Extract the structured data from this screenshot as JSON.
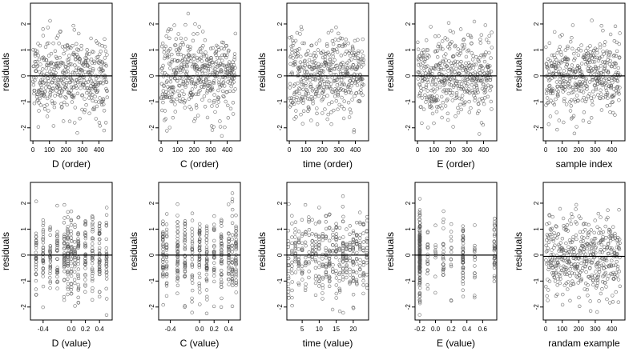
{
  "chart_data": [
    {
      "type": "scatter",
      "title": "",
      "xlabel": "D (order)",
      "ylabel": "residuals",
      "xlim": [
        -15,
        480
      ],
      "ylim": [
        -2.5,
        2.8
      ],
      "xticks": [
        "0",
        "100",
        "200",
        "300",
        "400"
      ],
      "yticks": [
        "-2",
        "-1",
        "0",
        "1",
        "2"
      ],
      "hline": 0,
      "n_points": 450,
      "x_kind": "index",
      "x_range": [
        1,
        450
      ],
      "seed": 11
    },
    {
      "type": "scatter",
      "title": "",
      "xlabel": "C (order)",
      "ylabel": "residuals",
      "xlim": [
        -15,
        480
      ],
      "ylim": [
        -2.5,
        2.8
      ],
      "xticks": [
        "0",
        "100",
        "200",
        "300",
        "400"
      ],
      "yticks": [
        "-2",
        "-1",
        "0",
        "1",
        "2"
      ],
      "hline": 0,
      "n_points": 450,
      "x_kind": "index",
      "x_range": [
        1,
        450
      ],
      "seed": 23
    },
    {
      "type": "scatter",
      "title": "",
      "xlabel": "time (order)",
      "ylabel": "residuals",
      "xlim": [
        -15,
        480
      ],
      "ylim": [
        -2.5,
        2.8
      ],
      "xticks": [
        "0",
        "100",
        "200",
        "300",
        "400"
      ],
      "yticks": [
        "-2",
        "-1",
        "0",
        "1",
        "2"
      ],
      "hline": 0,
      "n_points": 450,
      "x_kind": "index",
      "x_range": [
        1,
        450
      ],
      "seed": 37
    },
    {
      "type": "scatter",
      "title": "",
      "xlabel": "E (order)",
      "ylabel": "residuals",
      "xlim": [
        -15,
        480
      ],
      "ylim": [
        -2.5,
        2.8
      ],
      "xticks": [
        "0",
        "100",
        "200",
        "300",
        "400"
      ],
      "yticks": [
        "-2",
        "-1",
        "0",
        "1",
        "2"
      ],
      "hline": 0,
      "n_points": 450,
      "x_kind": "index",
      "x_range": [
        1,
        450
      ],
      "seed": 41
    },
    {
      "type": "scatter",
      "title": "",
      "xlabel": "sample index",
      "ylabel": "residuals",
      "xlim": [
        -15,
        480
      ],
      "ylim": [
        -2.5,
        2.8
      ],
      "xticks": [
        "0",
        "100",
        "200",
        "300",
        "400"
      ],
      "yticks": [
        "-2",
        "-1",
        "0",
        "1",
        "2"
      ],
      "hline": 0,
      "n_points": 450,
      "x_kind": "index",
      "x_range": [
        1,
        450
      ],
      "seed": 53
    },
    {
      "type": "scatter",
      "title": "",
      "xlabel": "D (value)",
      "ylabel": "residuals",
      "xlim": [
        -0.58,
        0.58
      ],
      "ylim": [
        -2.5,
        2.8
      ],
      "xticks": [
        "-0.4",
        "0.0",
        "0.2",
        "0.4"
      ],
      "xtick_values": [
        -0.4,
        0.0,
        0.2,
        0.4
      ],
      "yticks": [
        "-2",
        "-1",
        "0",
        "1",
        "2"
      ],
      "hline": 0,
      "n_points": 420,
      "x_kind": "discrete",
      "x_levels": [
        -0.5,
        -0.4,
        -0.3,
        -0.2,
        -0.1,
        -0.05,
        0.0,
        0.05,
        0.1,
        0.2,
        0.3,
        0.4,
        0.5
      ],
      "seed": 61
    },
    {
      "type": "scatter",
      "title": "",
      "xlabel": "C (value)",
      "ylabel": "residuals",
      "xlim": [
        -0.56,
        0.56
      ],
      "ylim": [
        -2.5,
        2.8
      ],
      "xticks": [
        "-0.4",
        "0.0",
        "0.2",
        "0.4"
      ],
      "xtick_values": [
        -0.4,
        0.0,
        0.2,
        0.4
      ],
      "yticks": [
        "-2",
        "-1",
        "0",
        "1",
        "2"
      ],
      "hline": 0,
      "n_points": 420,
      "x_kind": "discrete",
      "x_levels": [
        -0.5,
        -0.45,
        -0.3,
        -0.2,
        -0.1,
        0.0,
        0.1,
        0.2,
        0.3,
        0.4,
        0.45,
        0.5
      ],
      "seed": 73
    },
    {
      "type": "scatter",
      "title": "",
      "xlabel": "time (value)",
      "ylabel": "residuals",
      "xlim": [
        0.5,
        24.5
      ],
      "ylim": [
        -2.5,
        2.8
      ],
      "xticks": [
        "5",
        "10",
        "15",
        "20"
      ],
      "xtick_values": [
        5,
        10,
        15,
        20
      ],
      "yticks": [
        "-2",
        "-1",
        "0",
        "1",
        "2"
      ],
      "hline": 0,
      "n_points": 420,
      "x_kind": "discrete",
      "x_levels": [
        1,
        2,
        3,
        4,
        5,
        6,
        7,
        8,
        9,
        10,
        11,
        12,
        13,
        14,
        15,
        16,
        17,
        18,
        19,
        20,
        21,
        22,
        23,
        24
      ],
      "seed": 83
    },
    {
      "type": "scatter",
      "title": "",
      "xlabel": "E (value)",
      "ylabel": "residuals",
      "xlim": [
        -0.26,
        0.78
      ],
      "ylim": [
        -2.5,
        2.8
      ],
      "xticks": [
        "-0.2",
        "0.0",
        "0.2",
        "0.4",
        "0.6"
      ],
      "xtick_values": [
        -0.2,
        0.0,
        0.2,
        0.4,
        0.6
      ],
      "yticks": [
        "-2",
        "-1",
        "0",
        "1",
        "2"
      ],
      "hline": 0,
      "n_points": 330,
      "x_kind": "discrete_weighted",
      "x_levels": [
        -0.2,
        -0.1,
        0.0,
        0.1,
        0.2,
        0.35,
        0.5,
        0.75
      ],
      "x_weights": [
        55,
        6,
        4,
        5,
        5,
        14,
        4,
        7
      ],
      "seed": 97
    },
    {
      "type": "scatter",
      "title": "",
      "xlabel": "randam example",
      "ylabel": "residuals",
      "xlim": [
        -15,
        480
      ],
      "ylim": [
        -2.5,
        2.8
      ],
      "xticks": [
        "0",
        "100",
        "200",
        "300",
        "400"
      ],
      "yticks": [
        "-2",
        "-1",
        "0",
        "1",
        "2"
      ],
      "hline": -0.05,
      "n_points": 450,
      "x_kind": "index",
      "x_range": [
        1,
        450
      ],
      "seed": 101,
      "y_offset": -0.05
    }
  ]
}
